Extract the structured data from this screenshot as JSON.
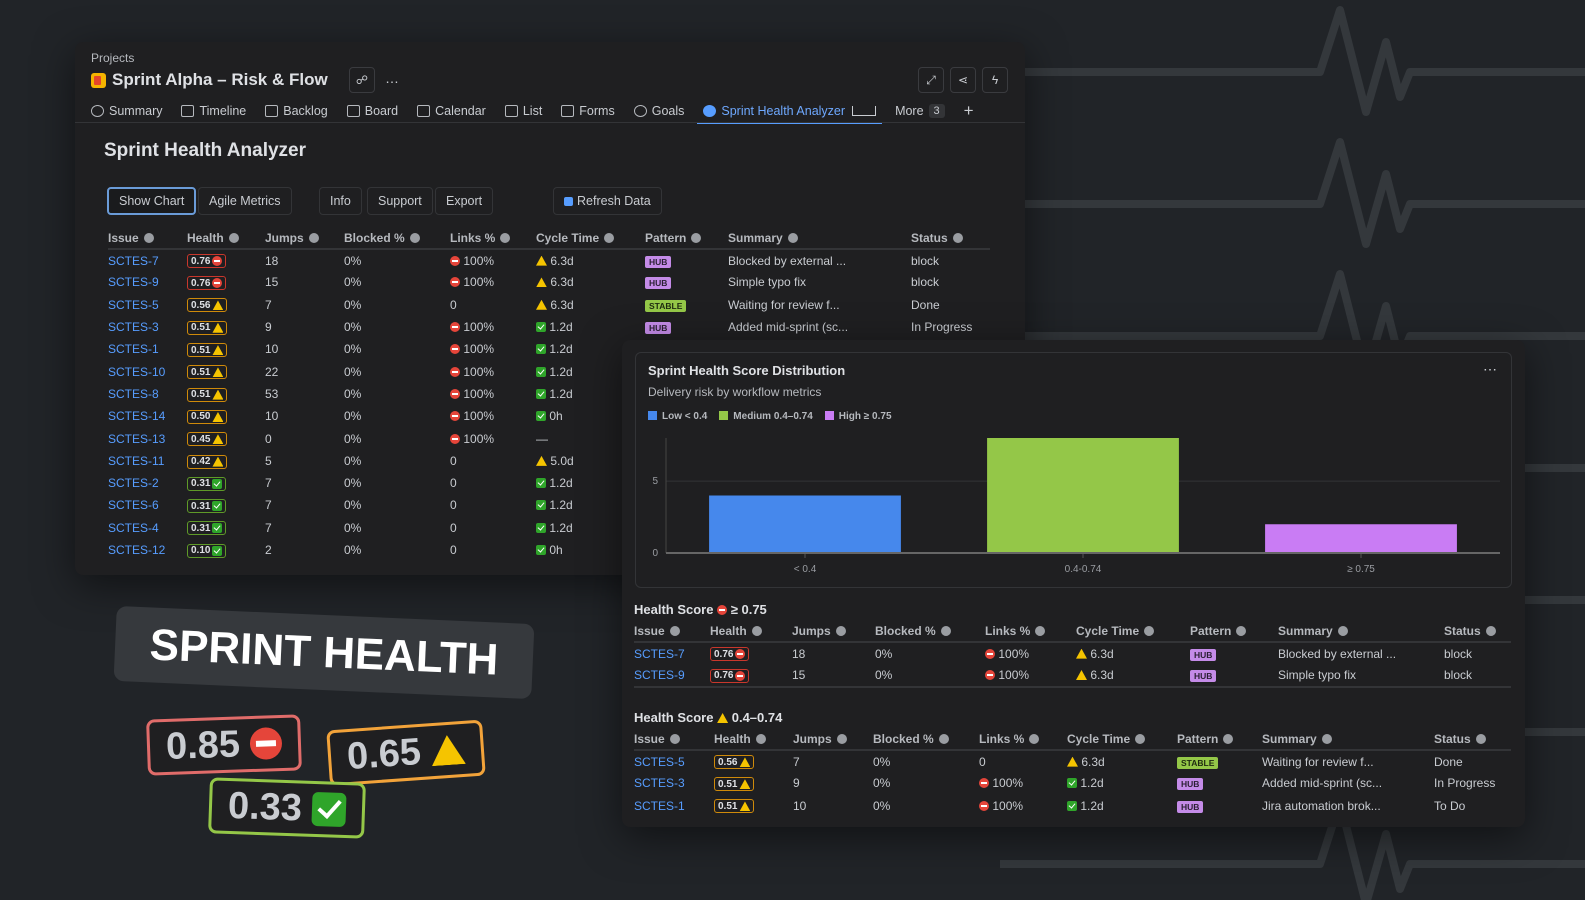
{
  "colors": {
    "accent": "#579dff",
    "high": "#e5453a",
    "medium": "#f5c400",
    "low": "#2fa52a",
    "hub": "#c48be8",
    "stable": "#94c748"
  },
  "header": {
    "breadcrumb": "Projects",
    "title": "Sprint Alpha – Risk & Flow",
    "more_icon": "…"
  },
  "tabs": [
    {
      "label": "Summary",
      "icon": "globe-icon"
    },
    {
      "label": "Timeline",
      "icon": "timeline-icon"
    },
    {
      "label": "Backlog",
      "icon": "backlog-icon"
    },
    {
      "label": "Board",
      "icon": "board-icon"
    },
    {
      "label": "Calendar",
      "icon": "calendar-icon"
    },
    {
      "label": "List",
      "icon": "list-icon"
    },
    {
      "label": "Forms",
      "icon": "forms-icon"
    },
    {
      "label": "Goals",
      "icon": "goals-icon"
    },
    {
      "label": "Sprint Health Analyzer",
      "icon": "app-icon",
      "active": true
    }
  ],
  "more_tab": {
    "label": "More",
    "count": "3",
    "add": "+"
  },
  "page": {
    "title": "Sprint Health Analyzer"
  },
  "toolbar": {
    "show_chart": "Show Chart",
    "agile_metrics": "Agile Metrics",
    "info": "Info",
    "support": "Support",
    "export": "Export",
    "refresh": "Refresh Data"
  },
  "columns": [
    "Issue",
    "Health",
    "Jumps",
    "Blocked %",
    "Links %",
    "Cycle Time",
    "Pattern",
    "Summary",
    "Status"
  ],
  "issues": [
    {
      "key": "SCTES-7",
      "health": "0.76",
      "level": "high",
      "jumps": "18",
      "blocked": "0%",
      "links": "100%",
      "links_icon": "block",
      "cycle": "6.3d",
      "cycle_icon": "warn",
      "pattern": "HUB",
      "summary": "Blocked by external ...",
      "status": "block"
    },
    {
      "key": "SCTES-9",
      "health": "0.76",
      "level": "high",
      "jumps": "15",
      "blocked": "0%",
      "links": "100%",
      "links_icon": "block",
      "cycle": "6.3d",
      "cycle_icon": "warn",
      "pattern": "HUB",
      "summary": "Simple typo fix",
      "status": "block"
    },
    {
      "key": "SCTES-5",
      "health": "0.56",
      "level": "med",
      "jumps": "7",
      "blocked": "0%",
      "links": "0",
      "links_icon": "",
      "cycle": "6.3d",
      "cycle_icon": "warn",
      "pattern": "STABLE",
      "summary": "Waiting for review f...",
      "status": "Done"
    },
    {
      "key": "SCTES-3",
      "health": "0.51",
      "level": "med",
      "jumps": "9",
      "blocked": "0%",
      "links": "100%",
      "links_icon": "block",
      "cycle": "1.2d",
      "cycle_icon": "check",
      "pattern": "HUB",
      "summary": "Added mid-sprint (sc...",
      "status": "In Progress"
    },
    {
      "key": "SCTES-1",
      "health": "0.51",
      "level": "med",
      "jumps": "10",
      "blocked": "0%",
      "links": "100%",
      "links_icon": "block",
      "cycle": "1.2d",
      "cycle_icon": "check"
    },
    {
      "key": "SCTES-10",
      "health": "0.51",
      "level": "med",
      "jumps": "22",
      "blocked": "0%",
      "links": "100%",
      "links_icon": "block",
      "cycle": "1.2d",
      "cycle_icon": "check"
    },
    {
      "key": "SCTES-8",
      "health": "0.51",
      "level": "med",
      "jumps": "53",
      "blocked": "0%",
      "links": "100%",
      "links_icon": "block",
      "cycle": "1.2d",
      "cycle_icon": "check"
    },
    {
      "key": "SCTES-14",
      "health": "0.50",
      "level": "med",
      "jumps": "10",
      "blocked": "0%",
      "links": "100%",
      "links_icon": "block",
      "cycle": "0h",
      "cycle_icon": "check"
    },
    {
      "key": "SCTES-13",
      "health": "0.45",
      "level": "med",
      "jumps": "0",
      "blocked": "0%",
      "links": "100%",
      "links_icon": "block",
      "cycle": "—",
      "cycle_icon": ""
    },
    {
      "key": "SCTES-11",
      "health": "0.42",
      "level": "med",
      "jumps": "5",
      "blocked": "0%",
      "links": "0",
      "links_icon": "",
      "cycle": "5.0d",
      "cycle_icon": "warn"
    },
    {
      "key": "SCTES-2",
      "health": "0.31",
      "level": "low",
      "jumps": "7",
      "blocked": "0%",
      "links": "0",
      "links_icon": "",
      "cycle": "1.2d",
      "cycle_icon": "check"
    },
    {
      "key": "SCTES-6",
      "health": "0.31",
      "level": "low",
      "jumps": "7",
      "blocked": "0%",
      "links": "0",
      "links_icon": "",
      "cycle": "1.2d",
      "cycle_icon": "check"
    },
    {
      "key": "SCTES-4",
      "health": "0.31",
      "level": "low",
      "jumps": "7",
      "blocked": "0%",
      "links": "0",
      "links_icon": "",
      "cycle": "1.2d",
      "cycle_icon": "check"
    },
    {
      "key": "SCTES-12",
      "health": "0.10",
      "level": "low",
      "jumps": "2",
      "blocked": "0%",
      "links": "0",
      "links_icon": "",
      "cycle": "0h",
      "cycle_icon": "check"
    }
  ],
  "chart_data": {
    "type": "bar",
    "title": "Sprint Health Score Distribution",
    "subtitle": "Delivery risk by workflow metrics",
    "categories": [
      "< 0.4",
      "0.4-0.74",
      "≥ 0.75"
    ],
    "values": [
      4,
      8,
      2
    ],
    "colors": [
      "#4688ec",
      "#94c748",
      "#c97cf4"
    ],
    "legend": [
      "Low < 0.4",
      "Medium 0.4–0.74",
      "High ≥ 0.75"
    ],
    "legend_placement": "top-left",
    "yticks": [
      0,
      5
    ],
    "ylim": [
      0,
      8
    ],
    "grid": true,
    "menu": "⋯"
  },
  "groups": [
    {
      "title": "Health Score",
      "icon": "block",
      "range": "≥ 0.75",
      "rows": [
        {
          "key": "SCTES-7",
          "health": "0.76",
          "level": "high",
          "jumps": "18",
          "blocked": "0%",
          "links": "100%",
          "links_icon": "block",
          "cycle": "6.3d",
          "cycle_icon": "warn",
          "pattern": "HUB",
          "summary": "Blocked by external ...",
          "status": "block"
        },
        {
          "key": "SCTES-9",
          "health": "0.76",
          "level": "high",
          "jumps": "15",
          "blocked": "0%",
          "links": "100%",
          "links_icon": "block",
          "cycle": "6.3d",
          "cycle_icon": "warn",
          "pattern": "HUB",
          "summary": "Simple typo fix",
          "status": "block"
        }
      ]
    },
    {
      "title": "Health Score",
      "icon": "warn",
      "range": "0.4–0.74",
      "rows": [
        {
          "key": "SCTES-5",
          "health": "0.56",
          "level": "med",
          "jumps": "7",
          "blocked": "0%",
          "links": "0",
          "links_icon": "",
          "cycle": "6.3d",
          "cycle_icon": "warn",
          "pattern": "STABLE",
          "summary": "Waiting for review f...",
          "status": "Done"
        },
        {
          "key": "SCTES-3",
          "health": "0.51",
          "level": "med",
          "jumps": "9",
          "blocked": "0%",
          "links": "100%",
          "links_icon": "block",
          "cycle": "1.2d",
          "cycle_icon": "check",
          "pattern": "HUB",
          "summary": "Added mid-sprint (sc...",
          "status": "In Progress"
        },
        {
          "key": "SCTES-1",
          "health": "0.51",
          "level": "med",
          "jumps": "10",
          "blocked": "0%",
          "links": "100%",
          "links_icon": "block",
          "cycle": "1.2d",
          "cycle_icon": "check",
          "pattern": "HUB",
          "summary": "Jira automation brok...",
          "status": "To Do"
        }
      ]
    }
  ],
  "promo": {
    "title": "SPRINT HEALTH",
    "scores": [
      {
        "value": "0.85",
        "level": "high"
      },
      {
        "value": "0.65",
        "level": "med"
      },
      {
        "value": "0.33",
        "level": "low"
      }
    ]
  }
}
